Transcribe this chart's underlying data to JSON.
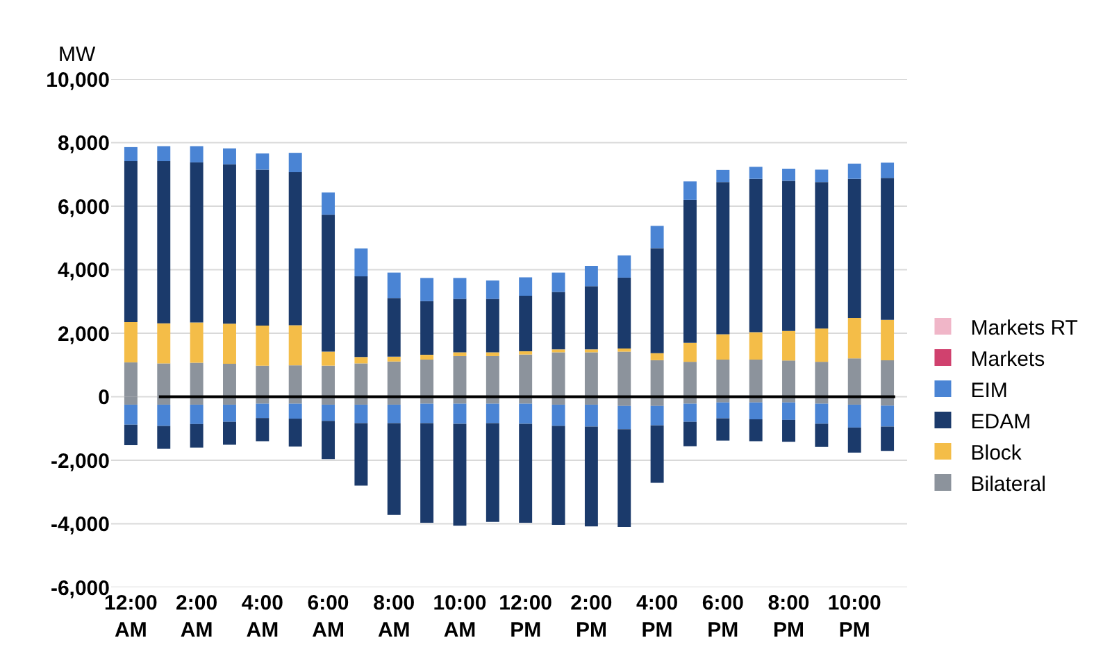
{
  "chart_data": {
    "type": "bar",
    "stacked": true,
    "ylabel": "MW",
    "categories": [
      "12:00 AM",
      null,
      "2:00 AM",
      null,
      "4:00 AM",
      null,
      "6:00 AM",
      null,
      "8:00 AM",
      null,
      "10:00 AM",
      null,
      "12:00 PM",
      null,
      "2:00 PM",
      null,
      "4:00 PM",
      null,
      "6:00 PM",
      null,
      "8:00 PM",
      null,
      "10:00 PM",
      null
    ],
    "series": [
      {
        "name": "Bilateral",
        "color": "#8c939c",
        "values": [
          1080,
          1050,
          1070,
          1040,
          980,
          990,
          980,
          1050,
          1110,
          1170,
          1280,
          1280,
          1330,
          1400,
          1400,
          1420,
          1150,
          1100,
          1170,
          1170,
          1140,
          1100,
          1210,
          1150
        ]
      },
      {
        "color": "#8c939c",
        "values": [
          -250,
          -250,
          -250,
          -250,
          -220,
          -220,
          -250,
          -250,
          -250,
          -220,
          -220,
          -220,
          -220,
          -250,
          -250,
          -290,
          -290,
          -220,
          -180,
          -180,
          -180,
          -220,
          -250,
          -280
        ]
      },
      {
        "name": "Block",
        "color": "#f4bd48",
        "values": [
          1270,
          1260,
          1270,
          1260,
          1260,
          1260,
          440,
          200,
          150,
          150,
          120,
          120,
          100,
          90,
          90,
          100,
          220,
          600,
          800,
          860,
          930,
          1050,
          1270,
          1270
        ]
      },
      {
        "color": "#4a84d4",
        "values": [
          -630,
          -670,
          -610,
          -540,
          -450,
          -470,
          -510,
          -580,
          -580,
          -610,
          -630,
          -610,
          -630,
          -670,
          -690,
          -730,
          -610,
          -570,
          -500,
          -530,
          -550,
          -630,
          -720,
          -660
        ]
      },
      {
        "name": "EDAM",
        "color": "#1b3a6b",
        "values": [
          5070,
          5110,
          5040,
          5020,
          4910,
          4820,
          4310,
          2540,
          1850,
          1690,
          1680,
          1680,
          1750,
          1810,
          1990,
          2230,
          3310,
          4500,
          4790,
          4830,
          4730,
          4610,
          4380,
          4470
        ]
      },
      {
        "color": "#1b3a6b",
        "values": [
          -640,
          -720,
          -740,
          -720,
          -730,
          -880,
          -1200,
          -1970,
          -2890,
          -3140,
          -3210,
          -3110,
          -3120,
          -3110,
          -3140,
          -3080,
          -1810,
          -770,
          -700,
          -690,
          -690,
          -730,
          -790,
          -770
        ]
      },
      {
        "name": "EIM",
        "color": "#4a84d4",
        "values": [
          440,
          470,
          510,
          500,
          510,
          610,
          700,
          880,
          800,
          730,
          660,
          580,
          580,
          610,
          640,
          700,
          700,
          580,
          380,
          380,
          380,
          390,
          480,
          480
        ]
      },
      {
        "name": "Markets",
        "color": "#d0416e",
        "values": [
          0,
          0,
          0,
          0,
          0,
          0,
          0,
          0,
          0,
          0,
          0,
          0,
          0,
          0,
          0,
          0,
          0,
          0,
          0,
          0,
          0,
          0,
          0,
          0
        ]
      },
      {
        "name": "Markets RT",
        "color": "#f0b6c8",
        "values": [
          0,
          0,
          0,
          0,
          0,
          0,
          0,
          0,
          0,
          0,
          0,
          0,
          0,
          0,
          0,
          0,
          0,
          0,
          0,
          0,
          0,
          0,
          0,
          0
        ]
      }
    ],
    "ylim": [
      -6000,
      10000
    ],
    "yticks": [
      {
        "value": -6000,
        "label": "-6,000"
      },
      {
        "value": -4000,
        "label": "-4,000"
      },
      {
        "value": -2000,
        "label": "-2,000"
      },
      0,
      {
        "value": 2000,
        "label": "2,000"
      },
      {
        "value": 4000,
        "label": "4,000"
      },
      {
        "value": 6000,
        "label": "6,000"
      },
      {
        "value": 8000,
        "label": "8,000"
      },
      {
        "value": 10000,
        "label": "10,000"
      }
    ],
    "ref_lines": [
      {
        "axis": "y",
        "value": 0,
        "color": "#000000"
      }
    ],
    "grid": "y",
    "legend": "right"
  }
}
